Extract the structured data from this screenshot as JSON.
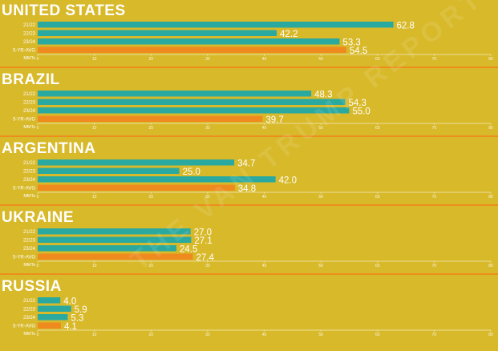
{
  "colors": {
    "background": "#d8b92a",
    "year_bar": "#2aa9a0",
    "avg_bar": "#ef8a1f",
    "divider": "#ec8e1c",
    "text": "#ffffff"
  },
  "watermark": "THE VAN TRUMP REPORT",
  "chart_data": [
    {
      "type": "bar",
      "orientation": "horizontal",
      "title": "UNITED STATES",
      "categories": [
        "21/22",
        "22/23",
        "23/24",
        "5-YR-AVG"
      ],
      "values": [
        62.8,
        42.2,
        53.3,
        54.5
      ],
      "labels": [
        "62.8",
        "42.2",
        "53.3",
        "54.5"
      ],
      "xlabel": "MMTs",
      "xlim": [
        0,
        80
      ],
      "xticks": [
        "0",
        "10",
        "20",
        "30",
        "40",
        "50",
        "60",
        "70",
        "80"
      ]
    },
    {
      "type": "bar",
      "orientation": "horizontal",
      "title": "BRAZIL",
      "categories": [
        "21/22",
        "22/23",
        "23/24",
        "5-YR-AVG"
      ],
      "values": [
        48.3,
        54.3,
        55.0,
        39.7
      ],
      "labels": [
        "48.3",
        "54.3",
        "55.0",
        "39.7"
      ],
      "xlabel": "MMTs",
      "xlim": [
        0,
        80
      ],
      "xticks": [
        "0",
        "10",
        "20",
        "30",
        "40",
        "50",
        "60",
        "70",
        "80"
      ]
    },
    {
      "type": "bar",
      "orientation": "horizontal",
      "title": "ARGENTINA",
      "categories": [
        "21/22",
        "22/23",
        "23/24",
        "5-YR-AVG"
      ],
      "values": [
        34.7,
        25.0,
        42.0,
        34.8
      ],
      "labels": [
        "34.7",
        "25.0",
        "42.0",
        "34.8"
      ],
      "xlabel": "MMTs",
      "xlim": [
        0,
        80
      ],
      "xticks": [
        "0",
        "10",
        "20",
        "30",
        "40",
        "50",
        "60",
        "70",
        "80"
      ]
    },
    {
      "type": "bar",
      "orientation": "horizontal",
      "title": "UKRAINE",
      "categories": [
        "21/22",
        "22/23",
        "23/24",
        "5-YR-AVG"
      ],
      "values": [
        27.0,
        27.1,
        24.5,
        27.4
      ],
      "labels": [
        "27.0",
        "27.1",
        "24.5",
        "27.4"
      ],
      "xlabel": "MMTs",
      "xlim": [
        0,
        80
      ],
      "xticks": [
        "0",
        "10",
        "20",
        "30",
        "40",
        "50",
        "60",
        "70",
        "80"
      ]
    },
    {
      "type": "bar",
      "orientation": "horizontal",
      "title": "RUSSIA",
      "categories": [
        "21/22",
        "22/23",
        "23/24",
        "5-YR-AVG"
      ],
      "values": [
        4.0,
        5.9,
        5.3,
        4.1
      ],
      "labels": [
        "4.0",
        "5.9",
        "5.3",
        "4.1"
      ],
      "xlabel": "MMTs",
      "xlim": [
        0,
        80
      ],
      "xticks": [
        "0",
        "10",
        "20",
        "30",
        "40",
        "50",
        "60",
        "70",
        "80"
      ]
    }
  ]
}
